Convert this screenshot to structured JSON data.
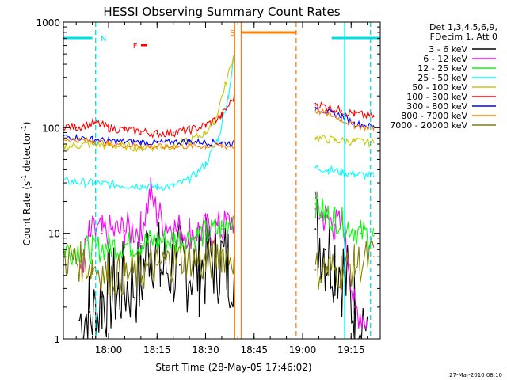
{
  "chart_data": {
    "type": "line",
    "title": "HESSI Observing Summary Count Rates",
    "xlabel": "Start Time (28-May-05 17:46:02)",
    "ylabel": "Count Rate (s⁻¹ detector⁻¹)",
    "ylabel_parts": [
      "Count Rate (s",
      "-1",
      " detector",
      "-1",
      ")"
    ],
    "y_scale": "log",
    "ylim": [
      1,
      1000
    ],
    "xlim": [
      "17:46:02",
      "19:24:00"
    ],
    "x_ticks": [
      "18:00",
      "18:15",
      "18:30",
      "18:45",
      "19:00",
      "19:15"
    ],
    "y_ticks": [
      "1",
      "10",
      "100",
      "1000"
    ],
    "grid": false,
    "legend_position": "right",
    "legend_header": [
      "Det 1,3,4,5,6,9,",
      "FDecim 1, Att 0"
    ],
    "timestamp": "27-Mar-2010 08:10",
    "markers": [
      {
        "label": "N",
        "color": "#00e0e0"
      },
      {
        "label": "F",
        "color": "#ff0000"
      },
      {
        "label": "S",
        "color": "#ff8000"
      }
    ],
    "flag_bars": [
      {
        "label": "N",
        "color": "#00e0e0",
        "spans": [
          [
            "17:46",
            "17:55"
          ],
          [
            "19:09",
            "19:24"
          ]
        ]
      },
      {
        "label": "F",
        "color": "#ff0000",
        "spans": [
          [
            "18:10",
            "18:12"
          ]
        ]
      },
      {
        "label": "S",
        "color": "#ff8000",
        "spans": [
          [
            "18:41",
            "18:58"
          ]
        ]
      }
    ],
    "vertical_lines": [
      {
        "time": "17:56",
        "color": "#00e0e0",
        "style": "dashed"
      },
      {
        "time": "19:13",
        "color": "#00e0e0",
        "style": "solid"
      },
      {
        "time": "19:21",
        "color": "#00e0e0",
        "style": "dashed"
      },
      {
        "time": "18:39",
        "color": "#ff8000",
        "style": "solid"
      },
      {
        "time": "18:41",
        "color": "#ff8000",
        "style": "solid"
      },
      {
        "time": "18:58",
        "color": "#ff8000",
        "style": "dashed"
      }
    ],
    "series": [
      {
        "name": "3 - 6 keV",
        "color": "#000000",
        "t": [
          "17:51",
          "17:54",
          "17:56",
          "17:58",
          "18:03",
          "18:10",
          "18:13",
          "18:16",
          "18:22",
          "18:28",
          "18:33",
          "18:37",
          "18:39",
          "19:04",
          "19:07",
          "19:10",
          "19:13",
          "19:16",
          "19:20"
        ],
        "values": [
          1.5,
          1.8,
          1.6,
          2.5,
          3.0,
          3.5,
          9.5,
          4.5,
          5.0,
          4.5,
          6.0,
          5.0,
          5.5,
          11,
          7,
          6,
          4,
          1.8,
          1.5
        ]
      },
      {
        "name": "6 - 12 keV",
        "color": "#ff00ff",
        "t": [
          "17:51",
          "17:54",
          "17:56",
          "17:58",
          "18:05",
          "18:10",
          "18:13",
          "18:15",
          "18:20",
          "18:25",
          "18:30",
          "18:35",
          "18:39",
          "19:04",
          "19:07",
          "19:10",
          "19:13",
          "19:16",
          "19:20"
        ],
        "values": [
          4.0,
          9.5,
          10,
          10,
          10.5,
          11,
          24,
          15,
          11,
          10.5,
          10.5,
          11,
          14,
          17,
          14,
          12,
          11,
          2.0,
          1.5
        ]
      },
      {
        "name": "12 - 25 keV",
        "color": "#00ff00",
        "t": [
          "17:46",
          "17:55",
          "18:00",
          "18:10",
          "18:15",
          "18:20",
          "18:25",
          "18:30",
          "18:35",
          "18:39",
          "19:04",
          "19:07",
          "19:10",
          "19:14",
          "19:18",
          "19:22"
        ],
        "values": [
          7,
          7,
          7.5,
          8,
          8.5,
          8.5,
          9,
          10,
          11,
          15,
          19,
          15,
          14,
          12,
          10,
          9.5
        ]
      },
      {
        "name": "25 - 50 keV",
        "color": "#00ffff",
        "t": [
          "17:46",
          "17:55",
          "18:00",
          "18:10",
          "18:15",
          "18:20",
          "18:25",
          "18:30",
          "18:34",
          "18:37",
          "18:39",
          "19:04",
          "19:08",
          "19:12",
          "19:16",
          "19:22"
        ],
        "values": [
          31,
          30,
          29,
          28,
          27.5,
          28,
          32,
          45,
          80,
          200,
          500,
          42,
          40,
          38,
          36,
          35
        ]
      },
      {
        "name": "50 - 100 keV",
        "color": "#c8c800",
        "t": [
          "17:46",
          "17:55",
          "18:00",
          "18:10",
          "18:15",
          "18:20",
          "18:25",
          "18:30",
          "18:33",
          "18:36",
          "18:39",
          "19:04",
          "19:10",
          "19:16",
          "19:22"
        ],
        "values": [
          66,
          70,
          68,
          65,
          66,
          68,
          75,
          90,
          120,
          250,
          520,
          80,
          76,
          74,
          72
        ]
      },
      {
        "name": "100 - 300 keV",
        "color": "#ff0000",
        "t": [
          "17:46",
          "17:50",
          "17:56",
          "18:00",
          "18:05",
          "18:10",
          "18:15",
          "18:20",
          "18:25",
          "18:30",
          "18:35",
          "18:39",
          "19:04",
          "19:08",
          "19:12",
          "19:16",
          "19:22"
        ],
        "values": [
          105,
          100,
          112,
          100,
          95,
          92,
          88,
          90,
          95,
          105,
          130,
          200,
          170,
          155,
          145,
          135,
          128
        ]
      },
      {
        "name": "300 - 800 keV",
        "color": "#0000ff",
        "t": [
          "17:46",
          "17:55",
          "18:00",
          "18:10",
          "18:15",
          "18:20",
          "18:25",
          "18:30",
          "18:35",
          "18:39",
          "19:04",
          "19:08",
          "19:12",
          "19:16",
          "19:22"
        ],
        "values": [
          83,
          78,
          75,
          73,
          72,
          73,
          74,
          73,
          72,
          71,
          155,
          140,
          130,
          110,
          102
        ]
      },
      {
        "name": "800 - 7000 keV",
        "color": "#ff8000",
        "t": [
          "17:46",
          "17:55",
          "18:00",
          "18:10",
          "18:15",
          "18:20",
          "18:25",
          "18:30",
          "18:35",
          "18:39",
          "19:04",
          "19:08",
          "19:12",
          "19:16",
          "19:22"
        ],
        "values": [
          78,
          75,
          70,
          67,
          66,
          66,
          67,
          67,
          67,
          66,
          145,
          135,
          120,
          105,
          98
        ]
      },
      {
        "name": "7000 - 20000 keV",
        "color": "#808000",
        "t": [
          "17:46",
          "17:50",
          "17:55",
          "18:00",
          "18:05",
          "18:10",
          "18:15",
          "18:20",
          "18:25",
          "18:30",
          "18:35",
          "18:39",
          "19:04",
          "19:08",
          "19:12",
          "19:16",
          "19:22"
        ],
        "values": [
          6,
          5.5,
          5,
          4,
          4,
          4.3,
          5,
          5.5,
          6,
          5,
          6.5,
          6,
          4.5,
          4.5,
          4.5,
          5,
          6
        ]
      }
    ]
  }
}
